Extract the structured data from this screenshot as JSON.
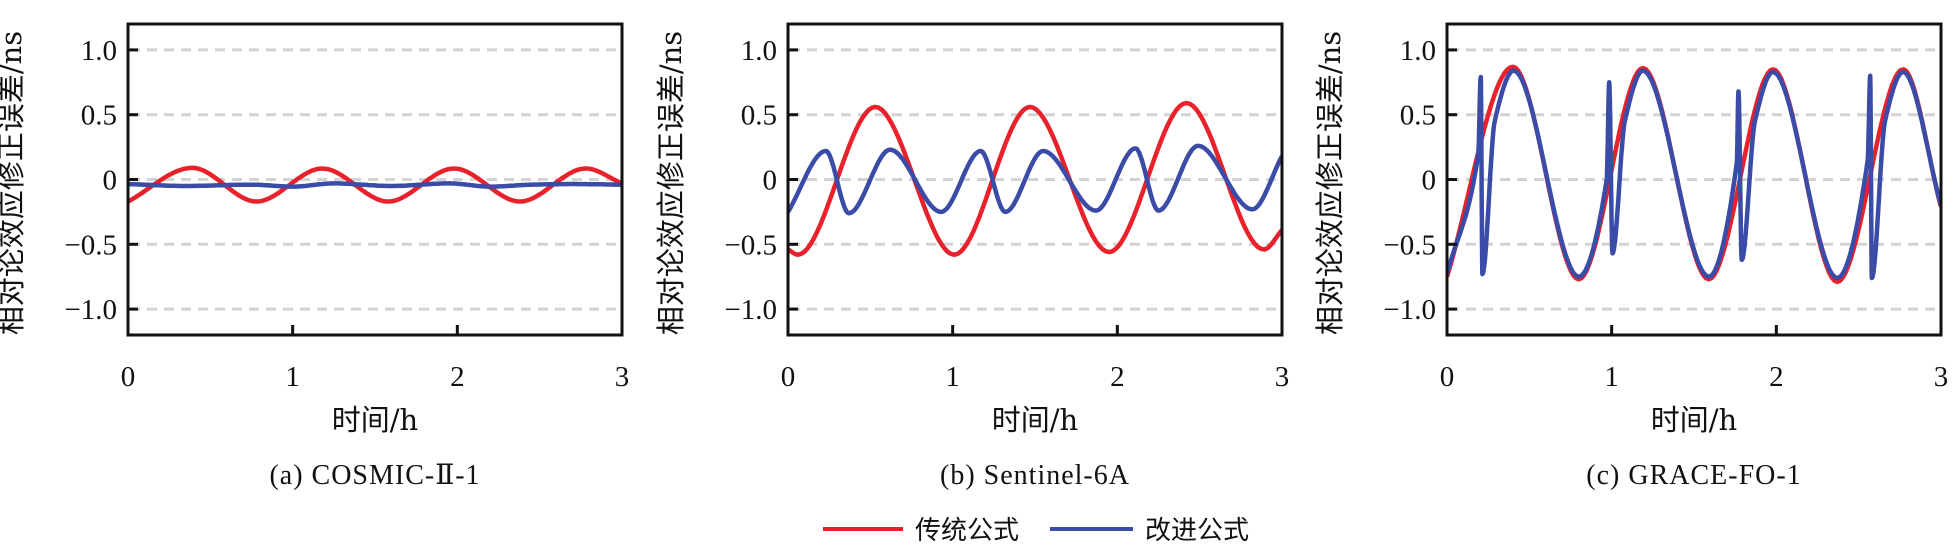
{
  "legend": {
    "placement": "bottom-center",
    "items": [
      {
        "label": "传统公式",
        "color": "#e8212b"
      },
      {
        "label": "改进公式",
        "color": "#3b4ba8"
      }
    ]
  },
  "chart_data": [
    {
      "type": "line",
      "title": "(a) COSMIC-Ⅱ-1",
      "xlabel": "时间/h",
      "ylabel": "相对论效应修正误差/ns",
      "xlim": [
        0,
        3
      ],
      "ylim": [
        -1.2,
        1.2
      ],
      "xticks": [
        0,
        1,
        2,
        3
      ],
      "xtick_labels": [
        "0",
        "1",
        "2",
        "3"
      ],
      "yticks": [
        1,
        0.5,
        0,
        -0.5,
        -1
      ],
      "ytick_labels": [
        "1.0",
        "0.5",
        "0",
        "−0.5",
        "−1.0"
      ],
      "grid": true,
      "series": [
        {
          "legend_index": 0,
          "color": "#e8212b",
          "x": [
            0,
            0.39,
            0.78,
            1.18,
            1.58,
            1.98,
            2.38,
            2.78,
            3.0
          ],
          "y": [
            -0.17,
            0.09,
            -0.17,
            0.085,
            -0.17,
            0.085,
            -0.17,
            0.085,
            -0.03
          ]
        },
        {
          "legend_index": 1,
          "color": "#3b4ba8",
          "x": [
            0,
            0.35,
            0.75,
            1.0,
            1.25,
            1.6,
            1.95,
            2.2,
            2.45,
            2.7,
            3.0
          ],
          "y": [
            -0.035,
            -0.05,
            -0.04,
            -0.055,
            -0.03,
            -0.05,
            -0.03,
            -0.055,
            -0.04,
            -0.035,
            -0.04
          ]
        }
      ]
    },
    {
      "type": "line",
      "title": "(b) Sentinel-6A",
      "xlabel": "时间/h",
      "ylabel": "相对论效应修正误差/ns",
      "xlim": [
        0,
        3
      ],
      "ylim": [
        -1.2,
        1.2
      ],
      "xticks": [
        0,
        1,
        2,
        3
      ],
      "xtick_labels": [
        "0",
        "1",
        "2",
        "3"
      ],
      "yticks": [
        1,
        0.5,
        0,
        -0.5,
        -1
      ],
      "ytick_labels": [
        "1.0",
        "0.5",
        "0",
        "−0.5",
        "−1.0"
      ],
      "grid": true,
      "series": [
        {
          "legend_index": 0,
          "color": "#e8212b",
          "x": [
            0,
            0.06,
            0.53,
            1.01,
            1.47,
            1.95,
            2.42,
            2.89,
            3.0
          ],
          "y": [
            -0.54,
            -0.58,
            0.56,
            -0.58,
            0.56,
            -0.56,
            0.59,
            -0.54,
            -0.39
          ]
        },
        {
          "legend_index": 1,
          "color": "#3b4ba8",
          "x": [
            0,
            0.23,
            0.37,
            0.62,
            0.93,
            1.17,
            1.32,
            1.55,
            1.87,
            2.11,
            2.25,
            2.49,
            2.82,
            3.0
          ],
          "y": [
            -0.25,
            0.22,
            -0.26,
            0.23,
            -0.25,
            0.22,
            -0.25,
            0.22,
            -0.24,
            0.24,
            -0.24,
            0.26,
            -0.23,
            0.18
          ]
        }
      ]
    },
    {
      "type": "line",
      "title": "(c) GRACE-FO-1",
      "xlabel": "时间/h",
      "ylabel": "相对论效应修正误差/ns",
      "xlim": [
        0,
        3
      ],
      "ylim": [
        -1.2,
        1.2
      ],
      "xticks": [
        0,
        1,
        2,
        3
      ],
      "xtick_labels": [
        "0",
        "1",
        "2",
        "3"
      ],
      "yticks": [
        1,
        0.5,
        0,
        -0.5,
        -1
      ],
      "ytick_labels": [
        "1.0",
        "0.5",
        "0",
        "−0.5",
        "−1.0"
      ],
      "grid": true,
      "series": [
        {
          "legend_index": 0,
          "color": "#e8212b",
          "x": [
            0,
            0.4,
            0.8,
            1.19,
            1.59,
            1.98,
            2.37,
            2.77,
            3.0
          ],
          "y": [
            -0.75,
            0.87,
            -0.77,
            0.86,
            -0.77,
            0.85,
            -0.79,
            0.85,
            -0.21
          ]
        },
        {
          "legend_index": 1,
          "color": "#3b4ba8",
          "x": [
            0,
            0.19,
            0.205,
            0.215,
            0.29,
            0.405,
            0.8,
            0.97,
            0.985,
            1.005,
            1.08,
            1.19,
            1.59,
            1.76,
            1.77,
            1.79,
            1.87,
            1.98,
            2.37,
            2.555,
            2.57,
            2.58,
            2.66,
            2.77,
            3.0
          ],
          "y": [
            -0.73,
            0.2,
            0.79,
            -0.73,
            0.45,
            0.84,
            -0.75,
            0.0,
            0.75,
            -0.57,
            0.45,
            0.84,
            -0.75,
            0.13,
            0.68,
            -0.62,
            0.45,
            0.83,
            -0.76,
            0.15,
            0.8,
            -0.76,
            0.45,
            0.83,
            -0.2
          ]
        }
      ]
    }
  ]
}
